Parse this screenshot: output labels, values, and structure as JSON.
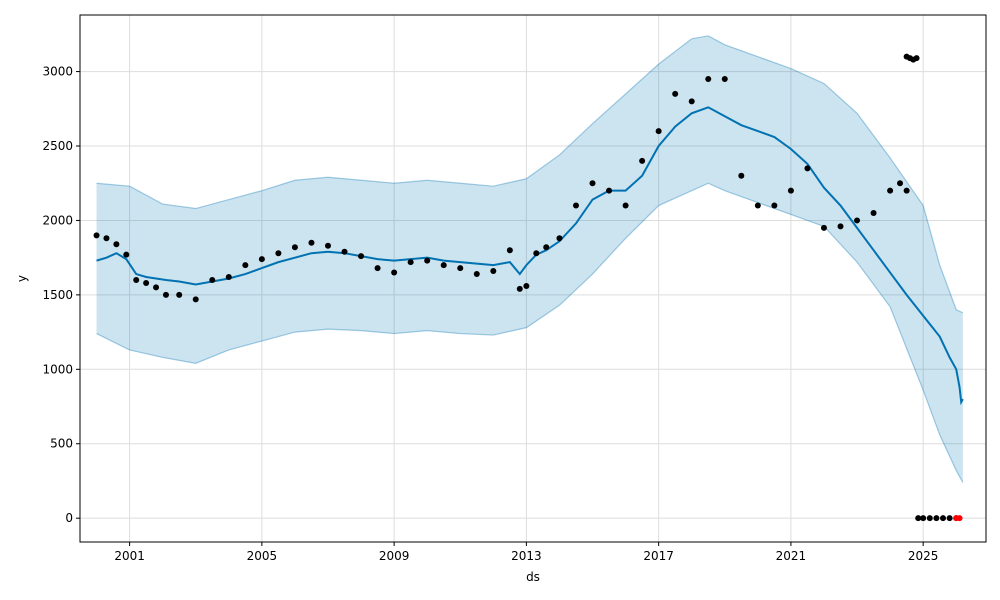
{
  "chart_data": {
    "type": "line",
    "title": "",
    "xlabel": "ds",
    "ylabel": "y",
    "grid": true,
    "colors": {
      "forecast_line": "#0072B2",
      "uncertainty_band": "#0072B2",
      "observed_points": "#000000",
      "highlight_points": "#ff0000",
      "grid": "#dddddd",
      "axes": "#000000"
    },
    "xlim": [
      1999.5,
      2026.9
    ],
    "ylim": [
      -160,
      3380
    ],
    "x_ticks": [
      {
        "value": 2001,
        "label": "2001"
      },
      {
        "value": 2005,
        "label": "2005"
      },
      {
        "value": 2009,
        "label": "2009"
      },
      {
        "value": 2013,
        "label": "2013"
      },
      {
        "value": 2017,
        "label": "2017"
      },
      {
        "value": 2021,
        "label": "2021"
      },
      {
        "value": 2025,
        "label": "2025"
      }
    ],
    "y_ticks": [
      {
        "value": 0,
        "label": "0"
      },
      {
        "value": 500,
        "label": "500"
      },
      {
        "value": 1000,
        "label": "1000"
      },
      {
        "value": 1500,
        "label": "1500"
      },
      {
        "value": 2000,
        "label": "2000"
      },
      {
        "value": 2500,
        "label": "2500"
      },
      {
        "value": 3000,
        "label": "3000"
      }
    ],
    "series": [
      {
        "role": "forecast",
        "x": [
          2000.0,
          2000.3,
          2000.6,
          2000.9,
          2001.2,
          2001.5,
          2001.8,
          2002.1,
          2002.5,
          2003.0,
          2003.5,
          2004.0,
          2004.5,
          2005.0,
          2005.5,
          2006.0,
          2006.5,
          2007.0,
          2007.5,
          2008.0,
          2008.5,
          2009.0,
          2009.5,
          2010.0,
          2010.5,
          2011.0,
          2011.5,
          2012.0,
          2012.5,
          2012.8,
          2013.0,
          2013.3,
          2013.6,
          2014.0,
          2014.5,
          2015.0,
          2015.5,
          2016.0,
          2016.5,
          2017.0,
          2017.5,
          2018.0,
          2018.5,
          2019.0,
          2019.5,
          2020.0,
          2020.5,
          2021.0,
          2021.5,
          2022.0,
          2022.5,
          2023.0,
          2023.5,
          2024.0,
          2024.5,
          2025.0,
          2025.5,
          2025.8,
          2026.0,
          2026.1,
          2026.15,
          2026.2
        ],
        "y": [
          1730,
          1750,
          1780,
          1740,
          1640,
          1620,
          1610,
          1600,
          1590,
          1570,
          1590,
          1610,
          1640,
          1680,
          1720,
          1750,
          1780,
          1790,
          1780,
          1760,
          1740,
          1730,
          1740,
          1750,
          1730,
          1720,
          1710,
          1700,
          1720,
          1640,
          1700,
          1770,
          1800,
          1860,
          1980,
          2140,
          2200,
          2200,
          2300,
          2500,
          2630,
          2720,
          2760,
          2700,
          2640,
          2600,
          2560,
          2480,
          2380,
          2220,
          2100,
          1950,
          1800,
          1650,
          1500,
          1360,
          1220,
          1080,
          1000,
          880,
          780,
          800
        ]
      },
      {
        "role": "uncertainty_upper",
        "x": [
          2000.0,
          2001.0,
          2002.0,
          2003.0,
          2004.0,
          2005.0,
          2006.0,
          2007.0,
          2008.0,
          2009.0,
          2010.0,
          2011.0,
          2012.0,
          2013.0,
          2014.0,
          2015.0,
          2016.0,
          2017.0,
          2018.0,
          2018.5,
          2019.0,
          2020.0,
          2021.0,
          2022.0,
          2023.0,
          2024.0,
          2025.0,
          2025.5,
          2026.0,
          2026.2
        ],
        "y": [
          2250,
          2230,
          2110,
          2080,
          2140,
          2200,
          2270,
          2290,
          2270,
          2250,
          2270,
          2250,
          2230,
          2280,
          2440,
          2650,
          2850,
          3050,
          3220,
          3240,
          3180,
          3100,
          3020,
          2920,
          2720,
          2420,
          2100,
          1700,
          1400,
          1380
        ]
      },
      {
        "role": "uncertainty_lower",
        "x": [
          2000.0,
          2001.0,
          2002.0,
          2003.0,
          2004.0,
          2005.0,
          2006.0,
          2007.0,
          2008.0,
          2009.0,
          2010.0,
          2011.0,
          2012.0,
          2013.0,
          2014.0,
          2015.0,
          2016.0,
          2017.0,
          2018.0,
          2018.5,
          2019.0,
          2020.0,
          2021.0,
          2022.0,
          2023.0,
          2024.0,
          2025.0,
          2025.5,
          2026.0,
          2026.2
        ],
        "y": [
          1240,
          1130,
          1080,
          1040,
          1130,
          1190,
          1250,
          1270,
          1260,
          1240,
          1260,
          1240,
          1230,
          1280,
          1430,
          1640,
          1880,
          2100,
          2200,
          2250,
          2200,
          2120,
          2040,
          1960,
          1720,
          1420,
          860,
          560,
          320,
          240
        ]
      },
      {
        "role": "observed",
        "x": [
          2000.0,
          2000.3,
          2000.6,
          2000.9,
          2001.2,
          2001.5,
          2001.8,
          2002.1,
          2002.5,
          2003.0,
          2003.5,
          2004.0,
          2004.5,
          2005.0,
          2005.5,
          2006.0,
          2006.5,
          2007.0,
          2007.5,
          2008.0,
          2008.5,
          2009.0,
          2009.5,
          2010.0,
          2010.5,
          2011.0,
          2011.5,
          2012.0,
          2012.5,
          2012.8,
          2013.0,
          2013.3,
          2013.6,
          2014.0,
          2014.5,
          2015.0,
          2015.5,
          2016.0,
          2016.5,
          2017.0,
          2017.5,
          2018.0,
          2018.5,
          2019.0,
          2019.5,
          2020.0,
          2020.5,
          2021.0,
          2021.5,
          2022.0,
          2022.5,
          2023.0,
          2023.5,
          2024.0,
          2024.3,
          2024.5
        ],
        "y": [
          1900,
          1880,
          1840,
          1770,
          1600,
          1580,
          1550,
          1500,
          1500,
          1470,
          1600,
          1620,
          1700,
          1740,
          1780,
          1820,
          1850,
          1830,
          1790,
          1760,
          1680,
          1650,
          1720,
          1730,
          1700,
          1680,
          1640,
          1660,
          1800,
          1540,
          1560,
          1780,
          1820,
          1880,
          2100,
          2250,
          2200,
          2100,
          2400,
          2600,
          2850,
          2800,
          2950,
          2950,
          2300,
          2100,
          2100,
          2200,
          2350,
          1950,
          1960,
          2000,
          2050,
          2200,
          2250,
          2200
        ]
      },
      {
        "role": "observed_outliers",
        "x": [
          2024.5,
          2024.6,
          2024.7,
          2024.8
        ],
        "y": [
          3100,
          3090,
          3080,
          3090
        ]
      },
      {
        "role": "observed_zero",
        "x": [
          2024.85,
          2025.0,
          2025.2,
          2025.4,
          2025.6,
          2025.8,
          2026.0
        ],
        "y": [
          0,
          0,
          0,
          0,
          0,
          0,
          0
        ]
      },
      {
        "role": "highlight",
        "x": [
          2026.0,
          2026.1
        ],
        "y": [
          0,
          0
        ]
      }
    ]
  }
}
